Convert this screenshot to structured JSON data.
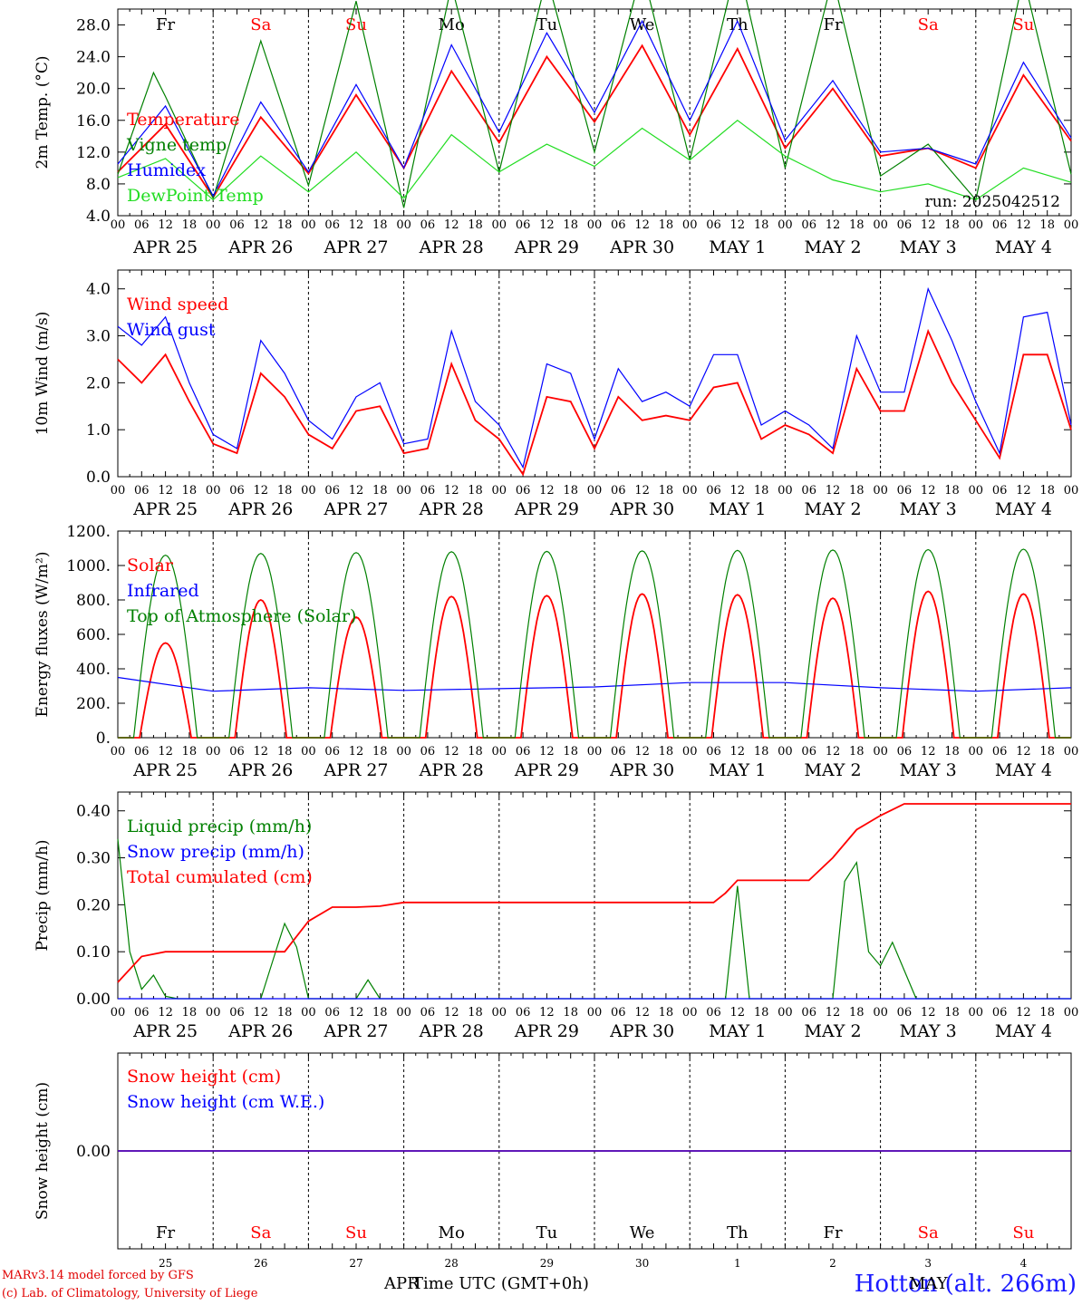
{
  "footer": {
    "model": "MARv3.14 model forced by GFS",
    "copyright": "(c) Lab. of Climatology, University of Liege",
    "x_title": "Time UTC (GMT+0h)",
    "station": "Hotton (alt. 266m)",
    "month_start": "APR",
    "month_end": "MAY"
  },
  "days": [
    {
      "label": "APR 25",
      "dow": "Fr",
      "num": "25",
      "weekend": false
    },
    {
      "label": "APR 26",
      "dow": "Sa",
      "num": "26",
      "weekend": true
    },
    {
      "label": "APR 27",
      "dow": "Su",
      "num": "27",
      "weekend": true
    },
    {
      "label": "APR 28",
      "dow": "Mo",
      "num": "28",
      "weekend": false
    },
    {
      "label": "APR 29",
      "dow": "Tu",
      "num": "29",
      "weekend": false
    },
    {
      "label": "APR 30",
      "dow": "We",
      "num": "30",
      "weekend": false
    },
    {
      "label": "MAY  1",
      "dow": "Th",
      "num": "1",
      "weekend": false
    },
    {
      "label": "MAY  2",
      "dow": "Fr",
      "num": "2",
      "weekend": false
    },
    {
      "label": "MAY  3",
      "dow": "Sa",
      "num": "3",
      "weekend": true
    },
    {
      "label": "MAY  4",
      "dow": "Su",
      "num": "4",
      "weekend": true
    }
  ],
  "hour_ticks": [
    "00",
    "06",
    "12",
    "18"
  ],
  "colors": {
    "red": "#ff0000",
    "green": "#008000",
    "blue": "#0000ff",
    "lightgreen": "#22dd22",
    "weekend": "#ff0000"
  },
  "chart_data": [
    {
      "type": "line",
      "ylabel": "2m Temp. (°C)",
      "ylim": [
        4,
        30
      ],
      "yticks": [
        "4.0",
        "8.0",
        "12.0",
        "16.0",
        "20.0",
        "24.0",
        "28.0"
      ],
      "annotation": "run: 2025042512",
      "x_unit": "hours since 2025-04-25 00 UTC",
      "series": [
        {
          "name": "Temperature",
          "color": "red",
          "x": [
            0,
            12,
            24,
            36,
            48,
            60,
            72,
            84,
            96,
            108,
            120,
            132,
            144,
            156,
            168,
            180,
            192,
            204,
            216,
            228,
            240
          ],
          "values": [
            9.5,
            15.5,
            6.3,
            16.4,
            9.3,
            19.2,
            10,
            22.2,
            13.2,
            24,
            15.8,
            25.4,
            14.2,
            25,
            12.5,
            20,
            11.5,
            12.5,
            10,
            21.7,
            13.4
          ]
        },
        {
          "name": "Vigne temp",
          "color": "green",
          "x": [
            0,
            9,
            12,
            24,
            36,
            48,
            60,
            72,
            84,
            96,
            108,
            120,
            132,
            144,
            156,
            168,
            180,
            192,
            204,
            216,
            228,
            240
          ],
          "values": [
            9.2,
            22,
            19,
            6.2,
            26,
            7.8,
            31,
            5,
            33,
            9.5,
            34,
            12,
            35,
            11,
            36,
            10,
            34,
            9,
            13,
            6,
            34,
            9.2
          ]
        },
        {
          "name": "Humidex",
          "color": "blue",
          "x": [
            0,
            12,
            24,
            36,
            48,
            60,
            72,
            84,
            96,
            108,
            120,
            132,
            144,
            156,
            168,
            180,
            192,
            204,
            216,
            228,
            240
          ],
          "values": [
            10.5,
            17.8,
            6.5,
            18.3,
            9.5,
            20.5,
            10,
            25.5,
            14.5,
            27,
            17,
            28.5,
            16,
            28.5,
            13.5,
            21,
            12,
            12.5,
            10.5,
            23.3,
            13.8
          ]
        },
        {
          "name": "DewPoint Temp",
          "color": "lightgreen",
          "x": [
            0,
            12,
            24,
            36,
            48,
            60,
            72,
            84,
            96,
            108,
            120,
            132,
            144,
            156,
            168,
            180,
            192,
            204,
            216,
            228,
            240
          ],
          "values": [
            8.8,
            11.2,
            6,
            11.5,
            7,
            12,
            6.2,
            14.2,
            9.5,
            13,
            10.2,
            15,
            11,
            16,
            11.5,
            8.5,
            7,
            8,
            6,
            10,
            8.2
          ]
        }
      ]
    },
    {
      "type": "line",
      "ylabel": "10m Wind (m/s)",
      "ylim": [
        0,
        4.4
      ],
      "yticks": [
        "0.0",
        "1.0",
        "2.0",
        "3.0",
        "4.0"
      ],
      "x_unit": "hours since 2025-04-25 00 UTC",
      "series": [
        {
          "name": "Wind speed",
          "color": "red",
          "x": [
            0,
            6,
            12,
            18,
            24,
            30,
            36,
            42,
            48,
            54,
            60,
            66,
            72,
            78,
            84,
            90,
            96,
            102,
            108,
            114,
            120,
            126,
            132,
            138,
            144,
            150,
            156,
            162,
            168,
            174,
            180,
            186,
            192,
            198,
            204,
            210,
            216,
            222,
            228,
            234,
            240
          ],
          "values": [
            2.5,
            2.0,
            2.6,
            1.6,
            0.7,
            0.5,
            2.2,
            1.7,
            0.9,
            0.6,
            1.4,
            1.5,
            0.5,
            0.6,
            2.4,
            1.2,
            0.8,
            0.05,
            1.7,
            1.6,
            0.6,
            1.7,
            1.2,
            1.3,
            1.2,
            1.9,
            2.0,
            0.8,
            1.1,
            0.9,
            0.5,
            2.3,
            1.4,
            1.4,
            3.1,
            2.0,
            1.2,
            0.4,
            2.6,
            2.6,
            1.0
          ]
        },
        {
          "name": "Wind gust",
          "color": "blue",
          "x": [
            0,
            6,
            12,
            18,
            24,
            30,
            36,
            42,
            48,
            54,
            60,
            66,
            72,
            78,
            84,
            90,
            96,
            102,
            108,
            114,
            120,
            126,
            132,
            138,
            144,
            150,
            156,
            162,
            168,
            174,
            180,
            186,
            192,
            198,
            204,
            210,
            216,
            222,
            228,
            234,
            240
          ],
          "values": [
            3.2,
            2.8,
            3.4,
            2.0,
            0.9,
            0.6,
            2.9,
            2.2,
            1.2,
            0.8,
            1.7,
            2.0,
            0.7,
            0.8,
            3.1,
            1.6,
            1.1,
            0.2,
            2.4,
            2.2,
            0.8,
            2.3,
            1.6,
            1.8,
            1.5,
            2.6,
            2.6,
            1.1,
            1.4,
            1.1,
            0.6,
            3.0,
            1.8,
            1.8,
            4.0,
            2.9,
            1.6,
            0.5,
            3.4,
            3.5,
            1.1
          ]
        }
      ]
    },
    {
      "type": "line",
      "ylabel": "Energy fluxes (W/m²)",
      "ylim": [
        0,
        1200
      ],
      "yticks": [
        "0.",
        "200.",
        "400.",
        "600.",
        "800.",
        "1000.",
        "1200."
      ],
      "x_unit": "hours since 2025-04-25 00 UTC",
      "series": [
        {
          "name": "Solar",
          "color": "red",
          "day_peaks": [
            550,
            800,
            700,
            820,
            825,
            835,
            830,
            810,
            850,
            835
          ]
        },
        {
          "name": "Infrared",
          "color": "blue",
          "x": [
            0,
            24,
            48,
            72,
            96,
            120,
            144,
            168,
            192,
            216,
            240
          ],
          "values": [
            350,
            270,
            290,
            275,
            285,
            295,
            320,
            320,
            290,
            270,
            290
          ]
        },
        {
          "name": "Top of Atmosphere (Solar)",
          "color": "green",
          "day_peaks": [
            1060,
            1070,
            1075,
            1080,
            1082,
            1085,
            1088,
            1090,
            1092,
            1095
          ]
        }
      ]
    },
    {
      "type": "line",
      "ylabel": "Precip (mm/h)",
      "ylim": [
        0,
        0.44
      ],
      "yticks": [
        "0.00",
        "0.10",
        "0.20",
        "0.30",
        "0.40"
      ],
      "x_unit": "hours since 2025-04-25 00 UTC",
      "series": [
        {
          "name": "Liquid precip (mm/h)",
          "color": "green",
          "x": [
            0,
            3,
            6,
            9,
            12,
            15,
            18,
            24,
            30,
            36,
            39,
            42,
            45,
            48,
            54,
            60,
            63,
            66,
            72,
            90,
            96,
            144,
            153,
            156,
            159,
            162,
            168,
            180,
            183,
            186,
            189,
            192,
            195,
            198,
            201,
            204,
            240
          ],
          "values": [
            0.34,
            0.1,
            0.02,
            0.05,
            0.005,
            0.0,
            0.0,
            0.0,
            0.0,
            0.0,
            0.08,
            0.16,
            0.11,
            0.0,
            0.0,
            0.0,
            0.04,
            0.0,
            0.0,
            0.0,
            0.0,
            0.0,
            0.0,
            0.24,
            0.0,
            0.0,
            0.0,
            0.0,
            0.25,
            0.29,
            0.1,
            0.07,
            0.12,
            0.06,
            0.0,
            0.0,
            0.0
          ]
        },
        {
          "name": "Snow precip (mm/h)",
          "color": "blue",
          "x": [
            0,
            240
          ],
          "values": [
            0,
            0
          ]
        },
        {
          "name": "Total cumulated (cm)",
          "color": "red",
          "x": [
            0,
            6,
            12,
            18,
            24,
            30,
            36,
            42,
            48,
            54,
            60,
            66,
            72,
            96,
            120,
            144,
            150,
            153,
            156,
            159,
            168,
            174,
            180,
            186,
            192,
            198,
            204,
            210,
            216,
            240
          ],
          "values": [
            0.035,
            0.09,
            0.1,
            0.1,
            0.1,
            0.1,
            0.1,
            0.1,
            0.165,
            0.195,
            0.195,
            0.197,
            0.205,
            0.205,
            0.205,
            0.205,
            0.205,
            0.225,
            0.252,
            0.252,
            0.252,
            0.252,
            0.3,
            0.36,
            0.39,
            0.415,
            0.415,
            0.415,
            0.415,
            0.415
          ]
        }
      ]
    },
    {
      "type": "line",
      "ylabel": "Snow height (cm)",
      "ylim": [
        -0.5,
        0.5
      ],
      "yticks": [
        "0.00"
      ],
      "x_unit": "hours since 2025-04-25 00 UTC",
      "series": [
        {
          "name": "Snow height (cm)",
          "color": "red",
          "x": [
            0,
            240
          ],
          "values": [
            0,
            0
          ]
        },
        {
          "name": "Snow height (cm W.E.)",
          "color": "blue",
          "x": [
            0,
            240
          ],
          "values": [
            0,
            0
          ]
        }
      ]
    }
  ]
}
